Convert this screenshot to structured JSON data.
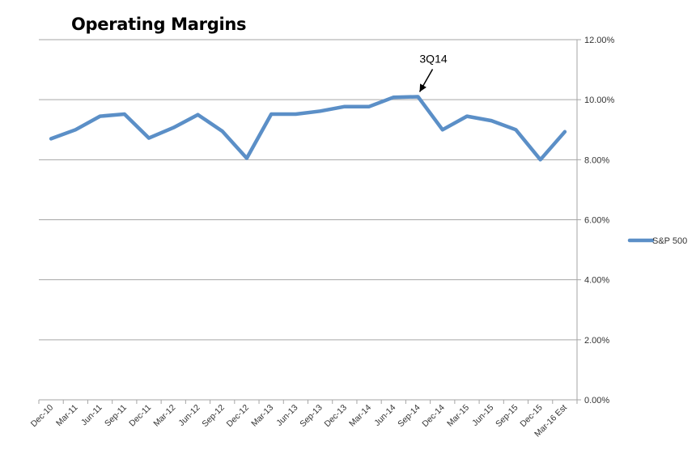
{
  "chart_data": {
    "type": "line",
    "title": "Operating Margins",
    "categories": [
      "Dec-10",
      "Mar-11",
      "Jun-11",
      "Sep-11",
      "Dec-11",
      "Mar-12",
      "Jun-12",
      "Sep-12",
      "Dec-12",
      "Mar-13",
      "Jun-13",
      "Sep-13",
      "Dec-13",
      "Mar-14",
      "Jun-14",
      "Sep-14",
      "Dec-14",
      "Mar-15",
      "Jun-15",
      "Sep-15",
      "Dec-15",
      "Mar-16 Est"
    ],
    "series": [
      {
        "name": "S&P 500",
        "color": "#5b8fc7",
        "values": [
          8.7,
          9.0,
          9.45,
          9.52,
          8.72,
          9.07,
          9.5,
          8.95,
          8.05,
          9.52,
          9.52,
          9.62,
          9.77,
          9.77,
          10.08,
          10.1,
          9.0,
          9.45,
          9.3,
          9.0,
          8.0,
          8.93
        ]
      }
    ],
    "yticks": [
      "0.00%",
      "2.00%",
      "4.00%",
      "6.00%",
      "8.00%",
      "10.00%",
      "12.00%"
    ],
    "ytick_values": [
      0,
      2,
      4,
      6,
      8,
      10,
      12
    ],
    "ylim": [
      0,
      12
    ],
    "y_axis_side": "right",
    "grid": true,
    "legend": "right",
    "annotation": {
      "text": "3Q14",
      "category": "Sep-14"
    }
  }
}
